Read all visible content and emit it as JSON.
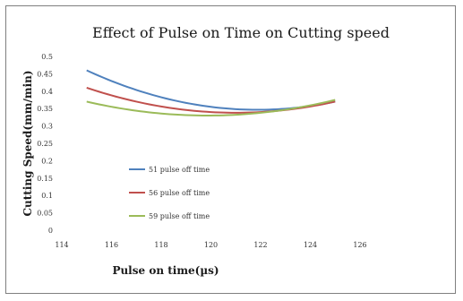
{
  "chart_data": {
    "type": "line",
    "title": "Effect of Pulse on Time on Cutting speed",
    "xlabel": "Pulse on time(µs)",
    "ylabel": "Cutting Speed(mm/min)",
    "xlim": [
      114,
      126
    ],
    "ylim": [
      0,
      0.5
    ],
    "x_ticks": [
      "114",
      "116",
      "118",
      "120",
      "122",
      "124",
      "126"
    ],
    "y_ticks": [
      "0",
      "0.05",
      "0.1",
      "0.15",
      "0.2",
      "0.25",
      "0.3",
      "0.35",
      "0.4",
      "0.45",
      "0.5"
    ],
    "grid": false,
    "legend_position": "lower-left",
    "x": [
      115,
      120,
      125
    ],
    "series": [
      {
        "name": "51 pulse off time",
        "color": "#4f81bd",
        "values": [
          0.46,
          0.355,
          0.37
        ]
      },
      {
        "name": "56 pulse off time",
        "color": "#c0504d",
        "values": [
          0.41,
          0.34,
          0.37
        ]
      },
      {
        "name": "59 pulse off time",
        "color": "#9bbb59",
        "values": [
          0.37,
          0.33,
          0.375
        ]
      }
    ]
  }
}
